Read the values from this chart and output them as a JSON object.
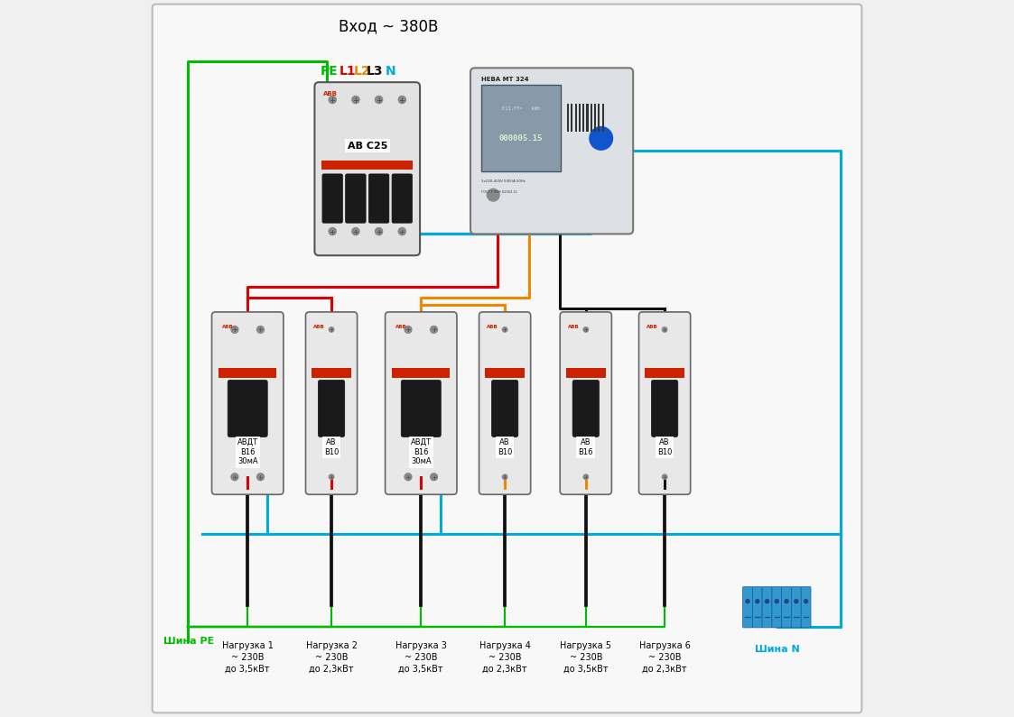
{
  "title": "Вход ~ 380В",
  "background_color": "#f0f0f0",
  "inner_bg": "#ffffff",
  "border_color": "#aaaaaa",
  "wire_colors": {
    "PE": "#00bb00",
    "L1": "#dd0000",
    "L2": "#ee8800",
    "L3": "#111111",
    "N": "#00aadd",
    "black": "#111111"
  },
  "label_colors": {
    "PE": "#00bb00",
    "L1": "#dd0000",
    "L2": "#ee8800",
    "L3": "#111111",
    "N": "#00aadd"
  },
  "lw": 2.2,
  "figsize": [
    11.23,
    7.95
  ],
  "dpi": 100,
  "shina_PE": "Шина РЕ",
  "shina_N": "Шина N",
  "loads": [
    "Нагрузка 1\n~ 230В\nдо 3,5кВт",
    "Нагрузка 2\n~ 230В\nдо 2,3кВт",
    "Нагрузка 3\n~ 230В\nдо 3,5кВт",
    "Нагрузка 4\n~ 230В\nдо 2,3кВт",
    "Нагрузка 5\n~ 230В\nдо 3,5кВт",
    "Нагрузка 6\n~ 230В\nдо 2,3кВт"
  ]
}
